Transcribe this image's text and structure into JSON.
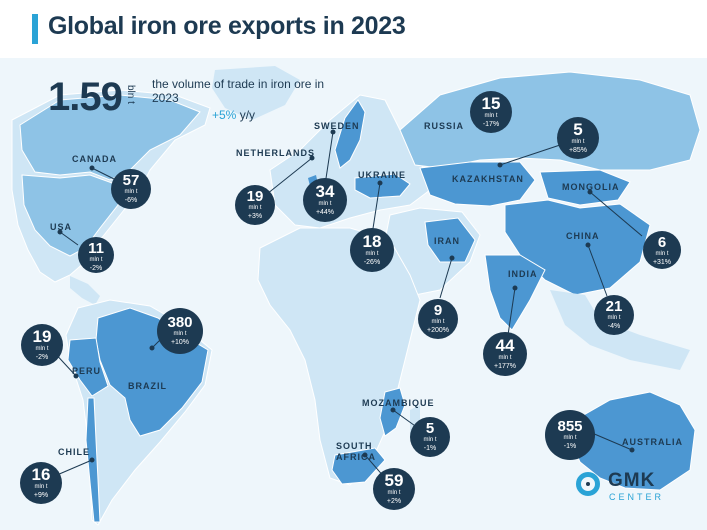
{
  "header": {
    "title": "Global iron ore exports in 2023"
  },
  "total": {
    "value": "1.59",
    "unit": "bln t",
    "description": "the volume of trade in iron ore in 2023",
    "change": "+5%",
    "change_suffix": "y/y"
  },
  "unit_label": "mln t",
  "colors": {
    "accent": "#2aa3d6",
    "bubble": "#1d3a52",
    "country_dark": "#4c97d2",
    "country_mid": "#8ec3e6",
    "land": "#cfe6f5",
    "sea": "#eef6fb"
  },
  "chart_data": {
    "type": "map",
    "title": "Global iron ore exports in 2023",
    "total_exports": {
      "value": 1.59,
      "unit": "bln t",
      "change_yoy": "+5%"
    },
    "unit": "mln t",
    "series": [
      {
        "country": "CANADA",
        "value": 57,
        "change": "-6%"
      },
      {
        "country": "USA",
        "value": 11,
        "change": "-2%"
      },
      {
        "country": "NETHERLANDS",
        "value": 19,
        "change": "+3%"
      },
      {
        "country": "SWEDEN",
        "value": 34,
        "change": "+44%"
      },
      {
        "country": "UKRAINE",
        "value": 18,
        "change": "-26%"
      },
      {
        "country": "RUSSIA",
        "value": 15,
        "change": "-17%"
      },
      {
        "country": "KAZAKHSTAN",
        "value": 5,
        "change": "+85%"
      },
      {
        "country": "MONGOLIA",
        "value": 6,
        "change": "+31%"
      },
      {
        "country": "CHINA",
        "value": 21,
        "change": "-4%"
      },
      {
        "country": "IRAN",
        "value": 9,
        "change": "+200%"
      },
      {
        "country": "INDIA",
        "value": 44,
        "change": "+177%"
      },
      {
        "country": "PERU",
        "value": 19,
        "change": "-2%"
      },
      {
        "country": "BRAZIL",
        "value": 380,
        "change": "+10%"
      },
      {
        "country": "CHILE",
        "value": 16,
        "change": "+9%"
      },
      {
        "country": "MOZAMBIQUE",
        "value": 5,
        "change": "-1%"
      },
      {
        "country": "SOUTH AFRICA",
        "value": 59,
        "change": "+2%"
      },
      {
        "country": "AUSTRALIA",
        "value": 855,
        "change": "-1%"
      }
    ]
  },
  "logo": {
    "name": "GMK",
    "sub": "CENTER"
  }
}
